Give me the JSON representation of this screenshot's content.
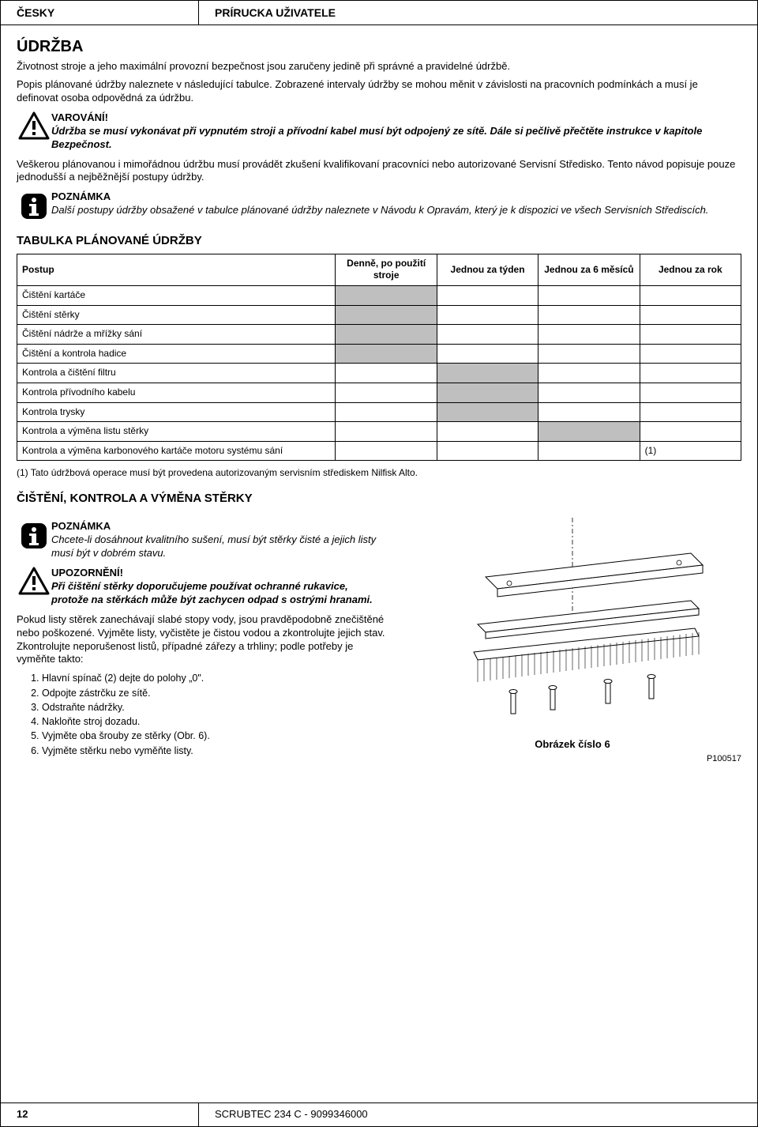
{
  "header": {
    "lang": "ČESKY",
    "manual": "PRÍRUCKA UŽIVATELE"
  },
  "section1": {
    "title": "ÚDRŽBA",
    "intro1": "Životnost stroje a jeho maximální provozní bezpečnost jsou zaručeny jedině při správné a pravidelné údržbě.",
    "intro2": "Popis plánované údržby naleznete v následující tabulce. Zobrazené intervaly údržby se mohou měnit v závislosti na pracovních podmínkách a musí je definovat osoba odpovědná za údržbu.",
    "warn_title": "VAROVÁNÍ!",
    "warn_text": "Údržba se musí vykonávat při vypnutém stroji a přívodní kabel musí být odpojený ze sítě. Dále si pečlivě přečtěte instrukce v kapitole Bezpečnost.",
    "para3": "Veškerou plánovanou i mimořádnou údržbu musí provádět zkušení kvalifikovaní pracovníci nebo autorizované Servisní Středisko. Tento návod popisuje pouze jednodušší a nejběžnější postupy údržby.",
    "note_title": "POZNÁMKA",
    "note_text": "Další postupy údržby obsažené v tabulce plánované údržby naleznete v Návodu k Opravám, který je k dispozici ve všech Servisních Střediscích."
  },
  "table": {
    "title": "TABULKA PLÁNOVANÉ ÚDRŽBY",
    "headers": {
      "procedure": "Postup",
      "daily": "Denně, po použití stroje",
      "weekly": "Jednou za týden",
      "sixmonth": "Jednou za 6 měsíců",
      "yearly": "Jednou za rok"
    },
    "rows": [
      {
        "label": "Čištění kartáče",
        "cells": [
          "fill",
          "",
          "",
          ""
        ]
      },
      {
        "label": "Čištění stěrky",
        "cells": [
          "fill",
          "",
          "",
          ""
        ]
      },
      {
        "label": "Čištění nádrže a mřížky sání",
        "cells": [
          "fill",
          "",
          "",
          ""
        ]
      },
      {
        "label": "Čištění a kontrola hadice",
        "cells": [
          "fill",
          "",
          "",
          ""
        ]
      },
      {
        "label": "Kontrola a čištění filtru",
        "cells": [
          "",
          "fill",
          "",
          ""
        ]
      },
      {
        "label": "Kontrola přívodního kabelu",
        "cells": [
          "",
          "fill",
          "",
          ""
        ]
      },
      {
        "label": "Kontrola trysky",
        "cells": [
          "",
          "fill",
          "",
          ""
        ]
      },
      {
        "label": "Kontrola a výměna listu stěrky",
        "cells": [
          "",
          "",
          "fill",
          ""
        ]
      },
      {
        "label": "Kontrola a výměna karbonového kartáče motoru systému sání",
        "cells": [
          "",
          "",
          "",
          "(1)"
        ]
      }
    ],
    "footnote": "(1)   Tato údržbová operace musí být provedena autorizovaným servisním střediskem Nilfisk Alto."
  },
  "section2": {
    "title": "ČIŠTĚNÍ, KONTROLA A VÝMĚNA STĚRKY",
    "note_title": "POZNÁMKA",
    "note_text": "Chcete-li dosáhnout kvalitního sušení, musí být stěrky čisté a jejich listy musí být v dobrém stavu.",
    "warn_title": "UPOZORNĚNÍ!",
    "warn_text": "Při čištění stěrky doporučujeme používat ochranné rukavice, protože na stěrkách může být zachycen odpad s ostrými hranami.",
    "para": "Pokud listy stěrek zanechávají slabé stopy vody, jsou pravděpodobně znečištěné nebo poškozené. Vyjměte listy, vyčistěte je čistou vodou a zkontrolujte jejich stav. Zkontrolujte neporušenost listů, případné zářezy a trhliny; podle potřeby je vyměňte takto:",
    "steps": [
      "Hlavní spínač (2) dejte do polohy „0\".",
      "Odpojte zástrčku ze sítě.",
      "Odstraňte nádržky.",
      "Nakloňte stroj dozadu.",
      "Vyjměte oba šrouby ze stěrky (Obr. 6).",
      "Vyjměte stěrku nebo vyměňte listy."
    ],
    "fig_caption": "Obrázek číslo 6",
    "fig_code": "P100517"
  },
  "footer": {
    "page": "12",
    "model": "SCRUBTEC 234 C - 9099346000"
  },
  "colors": {
    "cell_fill": "#bfbfbf",
    "border": "#000000",
    "text": "#000000",
    "bg": "#ffffff"
  }
}
